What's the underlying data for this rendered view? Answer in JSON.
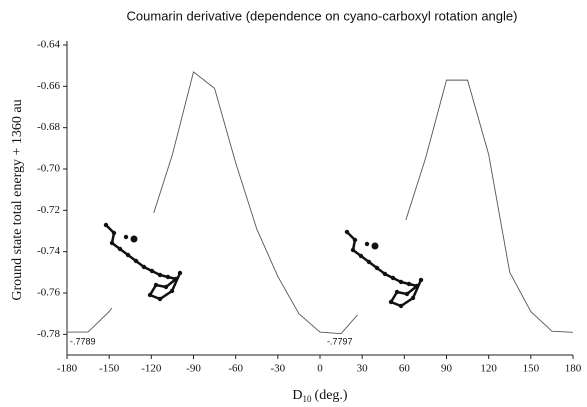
{
  "chart_data": {
    "type": "line",
    "title": "Coumarin derivative (dependence on cyano-carboxyl rotation angle)",
    "y_label": "Ground state total energy + 1360 au",
    "x_label": {
      "main": "D",
      "sub": "10",
      "unit": "(deg.)"
    },
    "x": [
      -180,
      -165,
      -150,
      -135,
      -120,
      -105,
      -90,
      -75,
      -60,
      -45,
      -30,
      -15,
      0,
      15,
      30,
      45,
      60,
      75,
      90,
      105,
      120,
      135,
      150,
      165,
      180
    ],
    "series": [
      {
        "color": "#555555",
        "values": [
          -0.7789,
          -0.7789,
          -0.769,
          -0.755,
          -0.725,
          -0.693,
          -0.653,
          -0.661,
          -0.697,
          -0.729,
          -0.752,
          -0.77,
          -0.7789,
          -0.7797,
          -0.768,
          -0.745,
          -0.727,
          -0.695,
          -0.657,
          -0.657,
          -0.693,
          -0.75,
          -0.769,
          -0.7785,
          -0.779
        ]
      }
    ],
    "annotations": [
      "-.7789",
      "-.7797"
    ],
    "xlim": [
      -180,
      180
    ],
    "ylim": [
      -0.79,
      -0.64
    ],
    "xticks": [
      -180,
      -150,
      -120,
      -90,
      -60,
      -30,
      0,
      30,
      60,
      90,
      120,
      150,
      180
    ],
    "yticks": [
      {
        "value": -0.78,
        "label": "-0.78"
      },
      {
        "value": -0.76,
        "label": "-0.76"
      },
      {
        "value": -0.74,
        "label": "-0.74"
      },
      {
        "value": -0.72,
        "label": "-0.72"
      },
      {
        "value": -0.7,
        "label": "-0.70"
      },
      {
        "value": -0.68,
        "label": "-0.68"
      },
      {
        "value": -0.66,
        "label": "-0.66"
      },
      {
        "value": -0.64,
        "label": "-0.64"
      }
    ]
  }
}
